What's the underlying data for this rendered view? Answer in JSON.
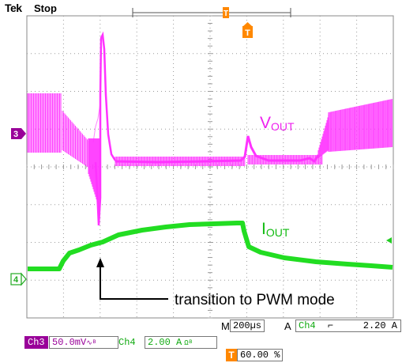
{
  "header": {
    "brand": "Tek",
    "run_state": "Stop"
  },
  "colors": {
    "ch3": "#ff33ff",
    "ch3_dark": "#990099",
    "ch4": "#22dd22",
    "ch4_dark": "#009900",
    "trigger": "#ff8800",
    "grid": "#9a9a9a"
  },
  "markers": {
    "ch3": "3",
    "ch4": "4",
    "trigger": "T"
  },
  "traces": {
    "vout": {
      "label_main": "V",
      "label_sub": "OUT"
    },
    "iout": {
      "label_main": "I",
      "label_sub": "OUT"
    }
  },
  "annotation": "transition to PWM mode",
  "readouts": {
    "horizontal_prefix": "M",
    "horizontal_scale": "200µs",
    "trigger_prefix": "A",
    "trigger_source": "Ch4",
    "trigger_slope_icon": "falling-edge-icon",
    "trigger_level": "2.20 A",
    "ch3_name": "Ch3",
    "ch3_scale": "50.0mV",
    "ch3_coupling_icon": "ac-coupling-icon",
    "ch4_name": "Ch4",
    "ch4_scale": "2.00 A",
    "ch4_coupling_icon": "ohm-bandwidth-icon",
    "trigger_position": "60.00 %"
  }
}
